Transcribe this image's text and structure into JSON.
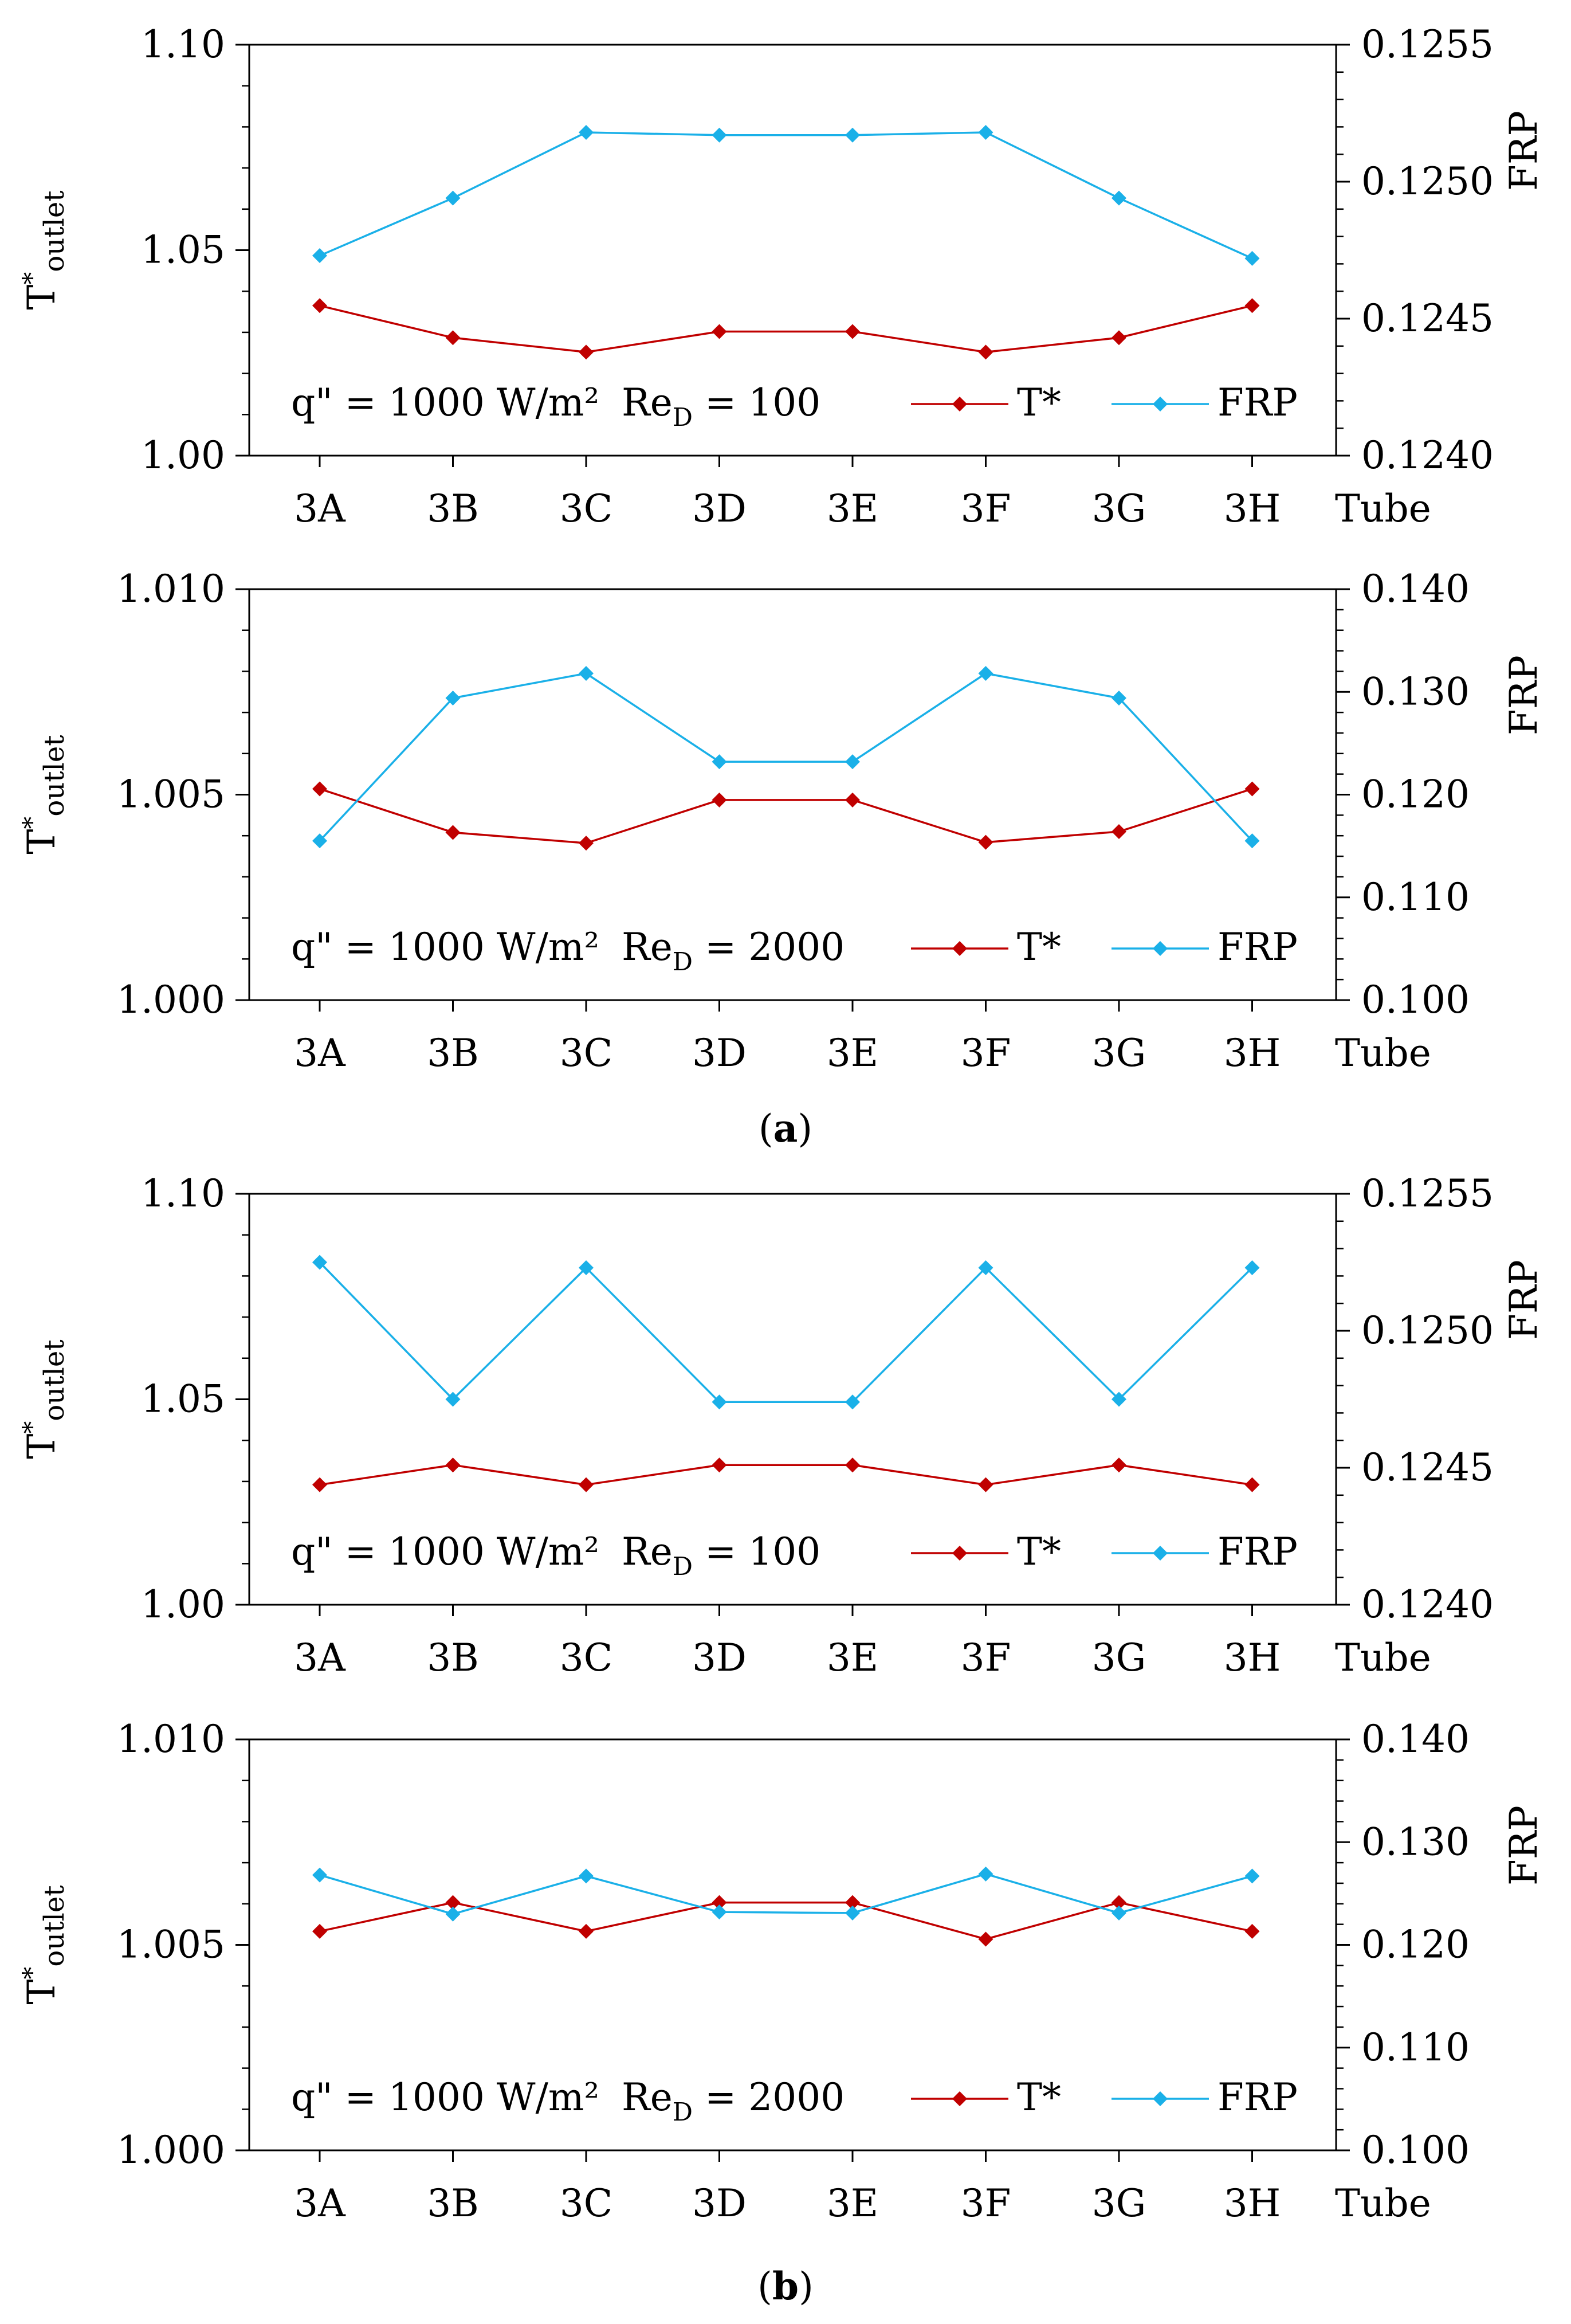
{
  "figure": {
    "captions": [
      {
        "paren_open": "(",
        "letter": "a",
        "paren_close": ")"
      },
      {
        "paren_open": "(",
        "letter": "b",
        "paren_close": ")"
      }
    ]
  },
  "chart_data": [
    {
      "type": "line",
      "categories": [
        "3A",
        "3B",
        "3C",
        "3D",
        "3E",
        "3F",
        "3G",
        "3H"
      ],
      "xlabel": "Tube",
      "ylabel_left": {
        "main": "T",
        "sup": "*",
        "sub": "outlet"
      },
      "ylabel_right": "FRP",
      "ylim_left": [
        1.0,
        1.1
      ],
      "yticks_left": [
        "1.00",
        "1.05",
        "1.10"
      ],
      "ylim_right": [
        0.124,
        0.1255
      ],
      "yticks_right": [
        "0.1240",
        "0.1245",
        "0.1250",
        "0.1255"
      ],
      "annotation": {
        "q": "q\" = 1000 W/m²",
        "re_main": "Re",
        "re_sub": "D",
        "re_val": " = 100"
      },
      "series": [
        {
          "name": "T*",
          "axis": "left",
          "color": "#c00000",
          "values": [
            1.0365,
            1.0287,
            1.0252,
            1.0302,
            1.0302,
            1.0252,
            1.0287,
            1.0365
          ]
        },
        {
          "name": "FRP",
          "axis": "right",
          "color": "#1ab0e8",
          "values": [
            0.12473,
            0.12494,
            0.12518,
            0.12517,
            0.12517,
            0.12518,
            0.12494,
            0.12472
          ]
        }
      ]
    },
    {
      "type": "line",
      "categories": [
        "3A",
        "3B",
        "3C",
        "3D",
        "3E",
        "3F",
        "3G",
        "3H"
      ],
      "xlabel": "Tube",
      "ylabel_left": {
        "main": "T",
        "sup": "*",
        "sub": "outlet"
      },
      "ylabel_right": "FRP",
      "ylim_left": [
        1.0,
        1.01
      ],
      "yticks_left": [
        "1.000",
        "1.005",
        "1.010"
      ],
      "ylim_right": [
        0.1,
        0.14
      ],
      "yticks_right": [
        "0.100",
        "0.110",
        "0.120",
        "0.130",
        "0.140"
      ],
      "annotation": {
        "q": "q\" = 1000 W/m²",
        "re_main": "Re",
        "re_sub": "D",
        "re_val": " = 2000"
      },
      "series": [
        {
          "name": "T*",
          "axis": "left",
          "color": "#c00000",
          "values": [
            1.00514,
            1.00408,
            1.00382,
            1.00487,
            1.00487,
            1.00384,
            1.0041,
            1.00514
          ]
        },
        {
          "name": "FRP",
          "axis": "right",
          "color": "#1ab0e8",
          "values": [
            0.1155,
            0.1294,
            0.1318,
            0.1232,
            0.1232,
            0.1318,
            0.1294,
            0.1155
          ]
        }
      ]
    },
    {
      "type": "line",
      "categories": [
        "3A",
        "3B",
        "3C",
        "3D",
        "3E",
        "3F",
        "3G",
        "3H"
      ],
      "xlabel": "Tube",
      "ylabel_left": {
        "main": "T",
        "sup": "*",
        "sub": "outlet"
      },
      "ylabel_right": "FRP",
      "ylim_left": [
        1.0,
        1.1
      ],
      "yticks_left": [
        "1.00",
        "1.05",
        "1.10"
      ],
      "ylim_right": [
        0.124,
        0.1255
      ],
      "yticks_right": [
        "0.1240",
        "0.1245",
        "0.1250",
        "0.1255"
      ],
      "annotation": {
        "q": "q\" = 1000 W/m²",
        "re_main": "Re",
        "re_sub": "D",
        "re_val": " = 100"
      },
      "series": [
        {
          "name": "T*",
          "axis": "left",
          "color": "#c00000",
          "values": [
            1.0292,
            1.034,
            1.0292,
            1.034,
            1.034,
            1.0292,
            1.034,
            1.0292
          ]
        },
        {
          "name": "FRP",
          "axis": "right",
          "color": "#1ab0e8",
          "values": [
            0.12525,
            0.12475,
            0.12523,
            0.12474,
            0.12474,
            0.12523,
            0.12475,
            0.12523
          ]
        }
      ]
    },
    {
      "type": "line",
      "categories": [
        "3A",
        "3B",
        "3C",
        "3D",
        "3E",
        "3F",
        "3G",
        "3H"
      ],
      "xlabel": "Tube",
      "ylabel_left": {
        "main": "T",
        "sup": "*",
        "sub": "outlet"
      },
      "ylabel_right": "FRP",
      "ylim_left": [
        1.0,
        1.01
      ],
      "yticks_left": [
        "1.000",
        "1.005",
        "1.010"
      ],
      "ylim_right": [
        0.1,
        0.14
      ],
      "yticks_right": [
        "0.100",
        "0.110",
        "0.120",
        "0.130",
        "0.140"
      ],
      "annotation": {
        "q": "q\" = 1000 W/m²",
        "re_main": "Re",
        "re_sub": "D",
        "re_val": " = 2000"
      },
      "series": [
        {
          "name": "T*",
          "axis": "left",
          "color": "#c00000",
          "values": [
            1.00533,
            1.00603,
            1.00533,
            1.00603,
            1.00603,
            1.00514,
            1.00603,
            1.00533
          ]
        },
        {
          "name": "FRP",
          "axis": "right",
          "color": "#1ab0e8",
          "values": [
            0.1268,
            0.123,
            0.1267,
            0.1232,
            0.1231,
            0.1269,
            0.1231,
            0.1267
          ]
        }
      ]
    }
  ]
}
